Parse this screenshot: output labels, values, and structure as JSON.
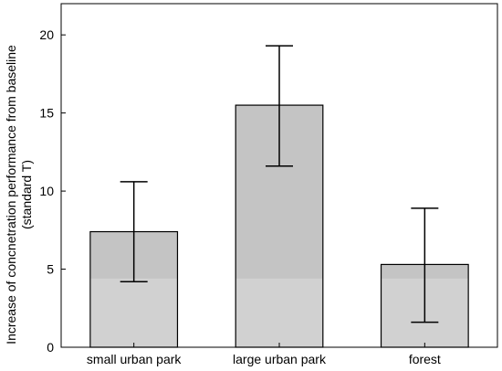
{
  "chart_data": {
    "type": "bar",
    "title": "",
    "xlabel": "",
    "ylabel_lines": [
      "Increase of concnetration performance from baseline",
      "(standard T)"
    ],
    "categories": [
      "small urban park",
      "large urban park",
      "forest"
    ],
    "values": [
      7.4,
      15.5,
      5.3
    ],
    "error_low": [
      4.2,
      11.6,
      1.6
    ],
    "error_high": [
      10.6,
      19.3,
      8.9
    ],
    "ylim": [
      0,
      22
    ],
    "yticks": [
      0,
      5,
      10,
      15,
      20
    ],
    "grid": false,
    "legend": "none",
    "colors": {
      "bar_upper": "#c4c4c4",
      "bar_lower": "#d1d1d1",
      "stroke": "#000000"
    }
  }
}
